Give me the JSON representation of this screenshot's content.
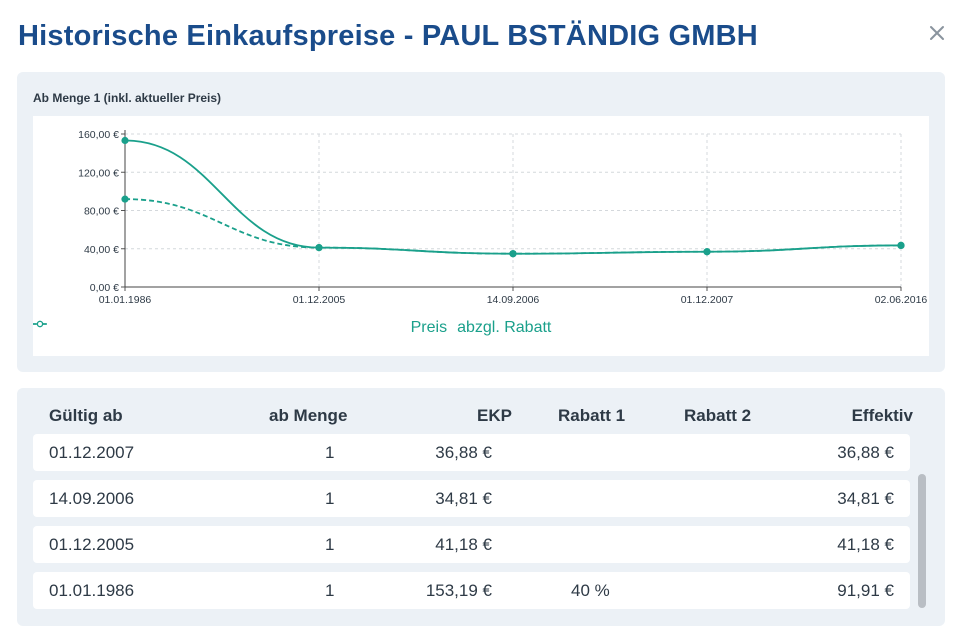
{
  "dialog": {
    "title": "Historische Einkaufspreise - PAUL BSTÄNDIG GMBH",
    "close_icon": "close-icon"
  },
  "chart_panel": {
    "subtitle": "Ab Menge 1 (inkl. aktueller Preis)"
  },
  "chart_data": {
    "type": "line",
    "title": "",
    "xlabel": "",
    "ylabel": "",
    "categories": [
      "01.01.1986",
      "01.12.2005",
      "14.09.2006",
      "01.12.2007",
      "02.06.2016"
    ],
    "series": [
      {
        "name": "Preis",
        "values": [
          153.19,
          41.18,
          34.81,
          36.88,
          43.5
        ],
        "color": "#1aa08b",
        "style": "solid"
      },
      {
        "name": "abzgl. Rabatt",
        "values": [
          91.91,
          41.18,
          34.81,
          36.88,
          43.5
        ],
        "color": "#1aa08b",
        "style": "dashed"
      }
    ],
    "yticks": [
      "0,00 €",
      "40,00 €",
      "80,00 €",
      "120,00 €",
      "160,00 €"
    ],
    "ytick_values": [
      0,
      40,
      80,
      120,
      160
    ],
    "ylim": [
      0,
      160
    ],
    "grid": true,
    "legend_position": "bottom-center"
  },
  "table": {
    "headers": {
      "valid_from": "Gültig ab",
      "from_qty": "ab Menge",
      "ekp": "EKP",
      "discount1": "Rabatt 1",
      "discount2": "Rabatt 2",
      "effective": "Effektiv"
    },
    "rows": [
      {
        "valid_from": "01.12.2007",
        "from_qty": "1",
        "ekp": "36,88 €",
        "discount1": "",
        "discount2": "",
        "effective": "36,88 €"
      },
      {
        "valid_from": "14.09.2006",
        "from_qty": "1",
        "ekp": "34,81 €",
        "discount1": "",
        "discount2": "",
        "effective": "34,81 €"
      },
      {
        "valid_from": "01.12.2005",
        "from_qty": "1",
        "ekp": "41,18 €",
        "discount1": "",
        "discount2": "",
        "effective": "41,18 €"
      },
      {
        "valid_from": "01.01.1986",
        "from_qty": "1",
        "ekp": "153,19 €",
        "discount1": "40 %",
        "discount2": "",
        "effective": "91,91 €"
      }
    ]
  },
  "colors": {
    "title": "#1a4c8b",
    "accent": "#1aa08b",
    "panel_bg": "#ecf1f6"
  }
}
